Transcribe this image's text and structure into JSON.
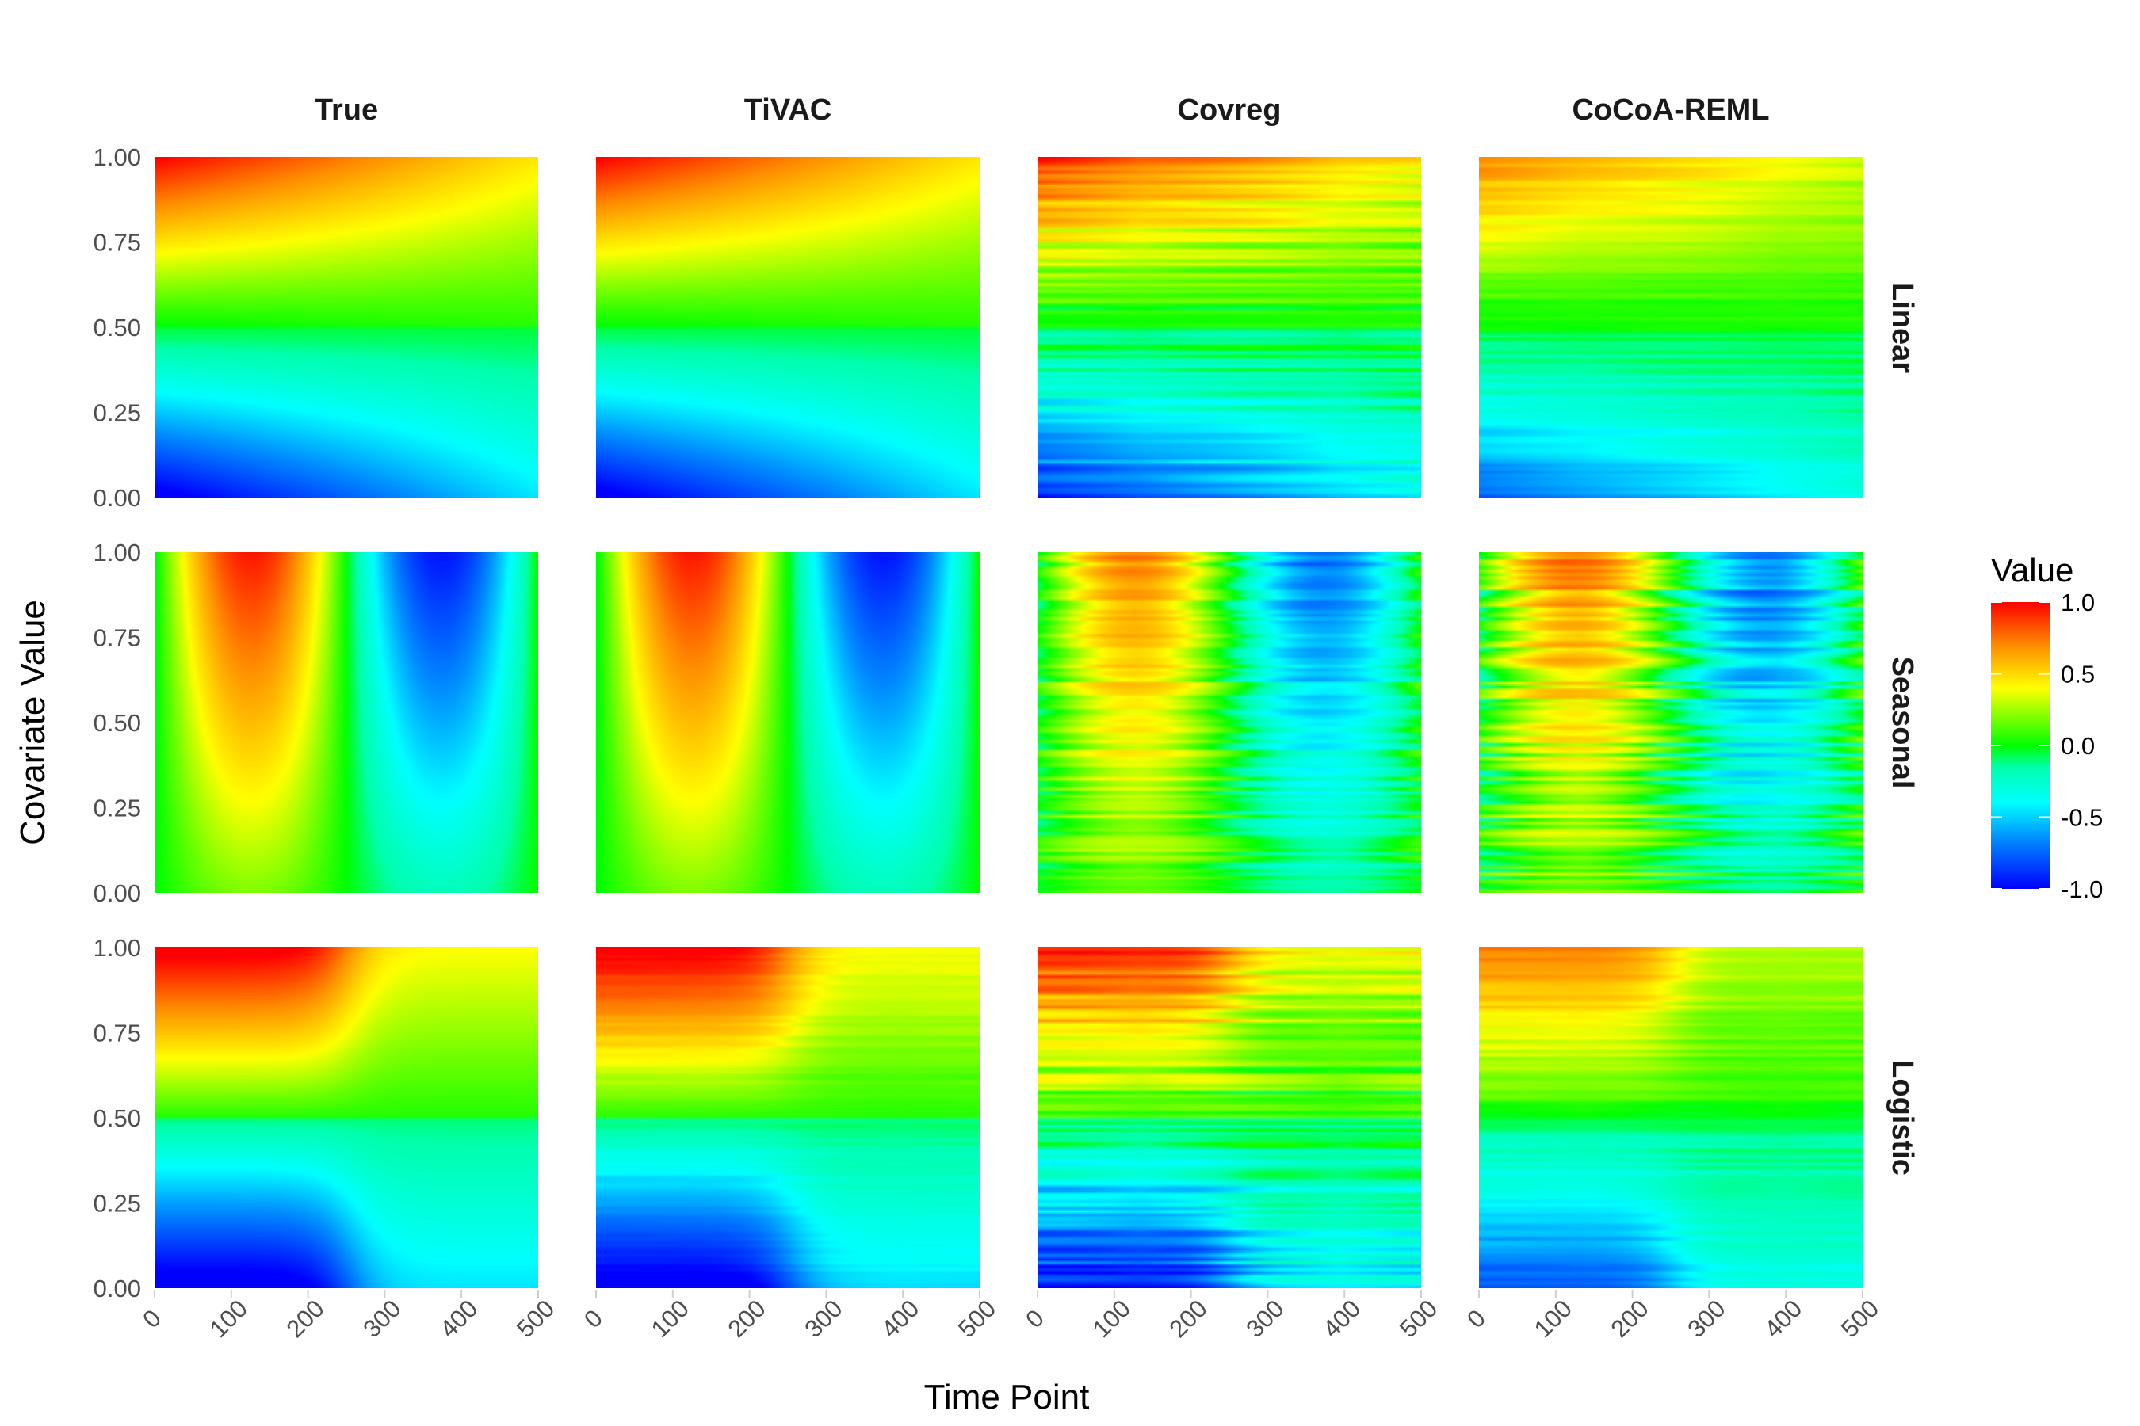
{
  "chart_data": {
    "type": "heatmap",
    "xlabel": "Time Point",
    "ylabel": "Covariate Value",
    "columns": [
      "True",
      "TiVAC",
      "Covreg",
      "CoCoA-REML"
    ],
    "rows": [
      "Linear",
      "Seasonal",
      "Logistic"
    ],
    "x_ticks": [
      "0",
      "100",
      "200",
      "300",
      "400",
      "500"
    ],
    "x_tick_values": [
      0,
      100,
      200,
      300,
      400,
      500
    ],
    "y_ticks": [
      "0.00",
      "0.25",
      "0.50",
      "0.75",
      "1.00"
    ],
    "y_tick_values": [
      0,
      0.25,
      0.5,
      0.75,
      1.0
    ],
    "xlim": [
      0,
      500
    ],
    "ylim": [
      0,
      1
    ],
    "legend": {
      "title": "Value",
      "labels": [
        "1.0",
        "0.5",
        "0.0",
        "-0.5",
        "-1.0"
      ],
      "values": [
        1.0,
        0.5,
        0.0,
        -0.5,
        -1.0
      ],
      "colors": [
        "#0000ff",
        "#00a0ff",
        "#00ffff",
        "#00ff7f",
        "#00ff00",
        "#ffff00",
        "#ff7f00",
        "#ff0000"
      ]
    },
    "panels": [
      {
        "row": "Linear",
        "col": "True",
        "pattern": "linear",
        "amp": 1.0,
        "noise": 0
      },
      {
        "row": "Linear",
        "col": "TiVAC",
        "pattern": "linear",
        "amp": 1.0,
        "noise": 0
      },
      {
        "row": "Linear",
        "col": "Covreg",
        "pattern": "linear",
        "amp": 0.85,
        "noise": 0.08
      },
      {
        "row": "Linear",
        "col": "CoCoA-REML",
        "pattern": "linear",
        "amp": 0.7,
        "noise": 0.04
      },
      {
        "row": "Seasonal",
        "col": "True",
        "pattern": "seasonal",
        "amp": 1.0,
        "noise": 0
      },
      {
        "row": "Seasonal",
        "col": "TiVAC",
        "pattern": "seasonal",
        "amp": 1.0,
        "noise": 0
      },
      {
        "row": "Seasonal",
        "col": "Covreg",
        "pattern": "seasonal",
        "amp": 0.75,
        "noise": 0.08
      },
      {
        "row": "Seasonal",
        "col": "CoCoA-REML",
        "pattern": "seasonal",
        "amp": 0.75,
        "noise": 0.12
      },
      {
        "row": "Logistic",
        "col": "True",
        "pattern": "logistic",
        "amp": 1.0,
        "noise": 0
      },
      {
        "row": "Logistic",
        "col": "TiVAC",
        "pattern": "logistic",
        "amp": 1.0,
        "noise": 0.02
      },
      {
        "row": "Logistic",
        "col": "Covreg",
        "pattern": "logistic",
        "amp": 0.85,
        "noise": 0.1
      },
      {
        "row": "Logistic",
        "col": "CoCoA-REML",
        "pattern": "logistic",
        "amp": 0.7,
        "noise": 0.04
      }
    ]
  }
}
